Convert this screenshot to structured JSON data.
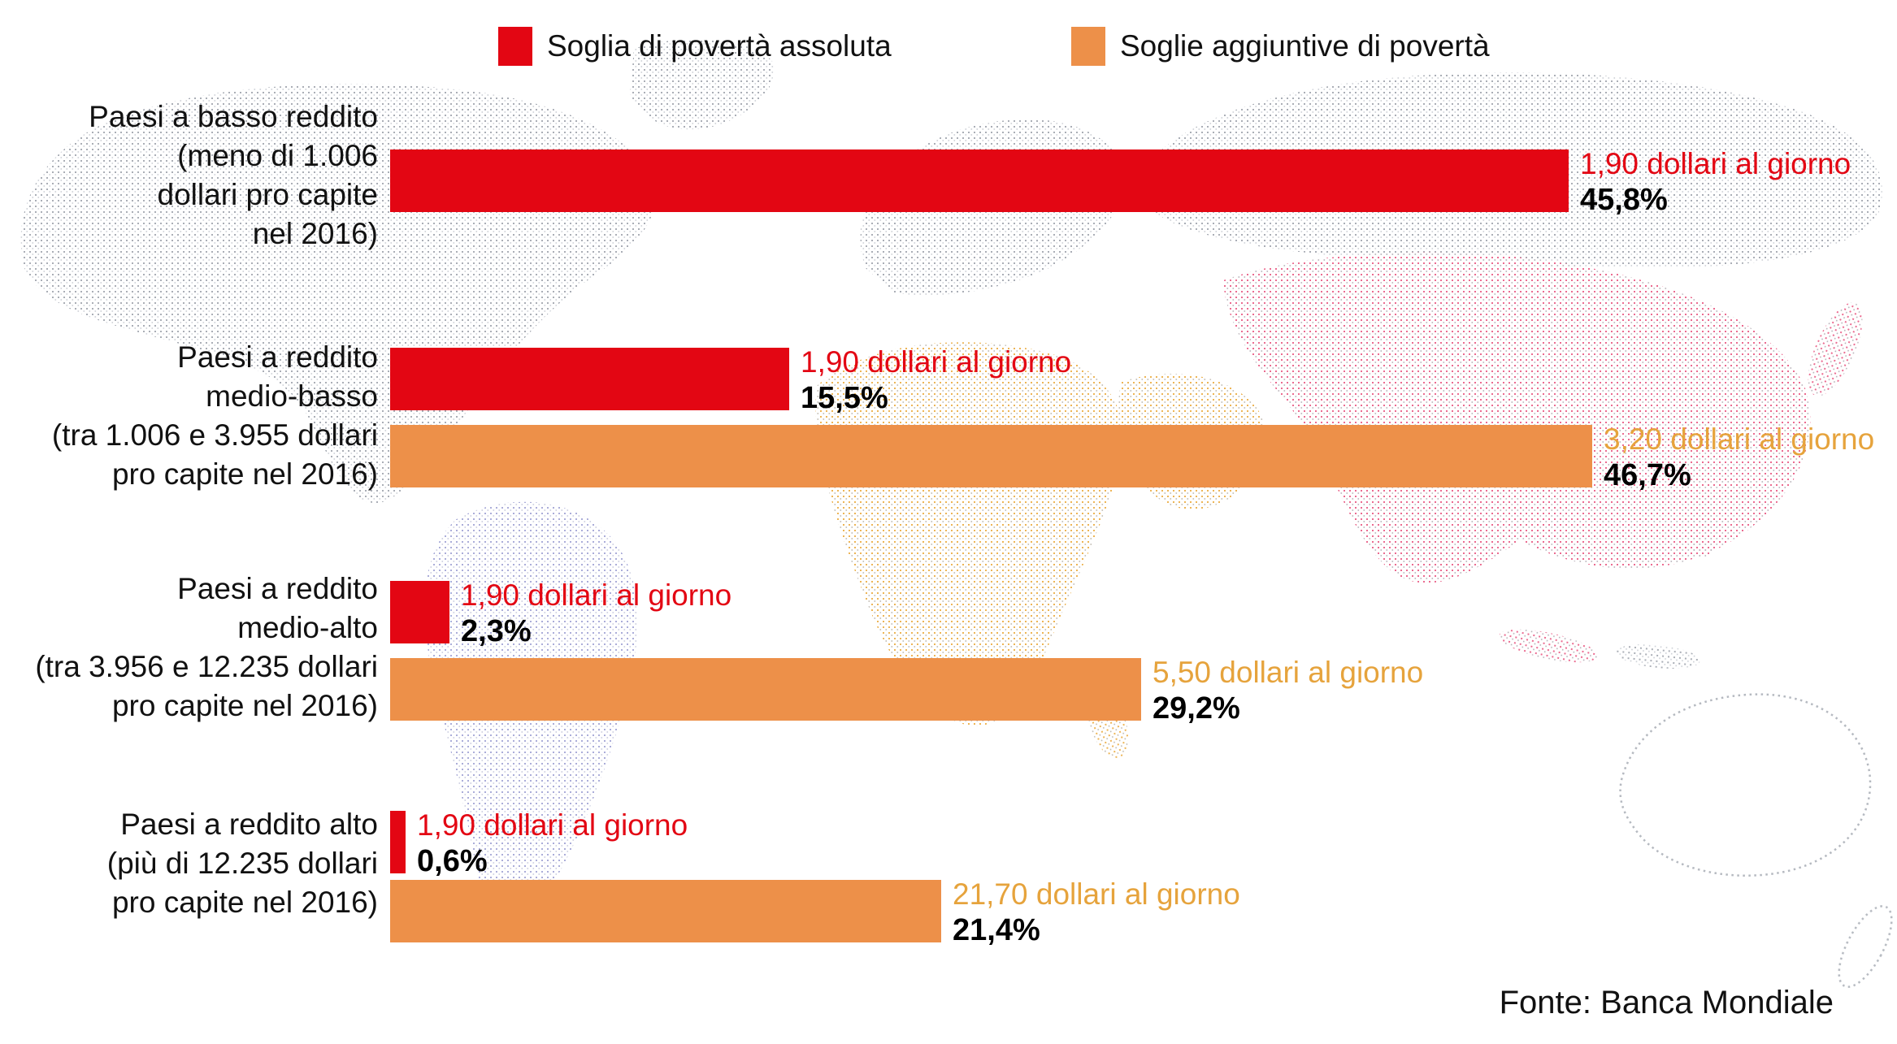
{
  "legend": {
    "items": [
      {
        "label": "Soglia di povertà assoluta",
        "color": "#e30613"
      },
      {
        "label": "Soglie aggiuntive di povertà",
        "color": "#ed9049"
      }
    ]
  },
  "source": "Fonte: Banca Mondiale",
  "colors": {
    "absolute_poverty_red": "#e30613",
    "additional_poverty_orange": "#ed9049",
    "orange_label_text": "#e6a33c",
    "text_black": "#111111",
    "map_gray_dots": "#9ba0a9",
    "map_pink_dots": "#e8517d",
    "map_amber_dots": "#eaa838",
    "map_purple_dots": "#9c9fd2"
  },
  "chart_data": {
    "type": "bar",
    "orientation": "horizontal",
    "title": "",
    "unit": "% of population",
    "legend_position": "top",
    "series_legend": [
      "Soglia di povertà assoluta",
      "Soglie aggiuntive di povertà"
    ],
    "x_range_percent": [
      0,
      50
    ],
    "grid": false,
    "groups": [
      {
        "category": "Paesi a basso reddito\n(meno di 1.006\ndollari pro capite\nnel 2016)",
        "bars": [
          {
            "series": "Soglia di povertà assoluta",
            "threshold": "1,90 dollari al giorno",
            "value": 45.8,
            "value_label": "45,8%"
          }
        ]
      },
      {
        "category": "Paesi a reddito\nmedio-basso\n(tra 1.006 e 3.955 dollari\npro capite nel 2016)",
        "bars": [
          {
            "series": "Soglia di povertà assoluta",
            "threshold": "1,90 dollari al giorno",
            "value": 15.5,
            "value_label": "15,5%"
          },
          {
            "series": "Soglie aggiuntive di povertà",
            "threshold": "3,20 dollari al giorno",
            "value": 46.7,
            "value_label": "46,7%"
          }
        ]
      },
      {
        "category": "Paesi a reddito\nmedio-alto\n(tra 3.956 e 12.235 dollari\npro capite nel 2016)",
        "bars": [
          {
            "series": "Soglia di povertà assoluta",
            "threshold": "1,90 dollari al giorno",
            "value": 2.3,
            "value_label": "2,3%"
          },
          {
            "series": "Soglie aggiuntive di povertà",
            "threshold": "5,50 dollari al giorno",
            "value": 29.2,
            "value_label": "29,2%"
          }
        ]
      },
      {
        "category": "Paesi a reddito alto\n(più di 12.235 dollari\npro capite nel 2016)",
        "bars": [
          {
            "series": "Soglia di povertà assoluta",
            "threshold": "1,90 dollari al giorno",
            "value": 0.6,
            "value_label": "0,6%"
          },
          {
            "series": "Soglie aggiuntive di povertà",
            "threshold": "21,70 dollari al giorno",
            "value": 21.4,
            "value_label": "21,4%"
          }
        ]
      }
    ]
  }
}
